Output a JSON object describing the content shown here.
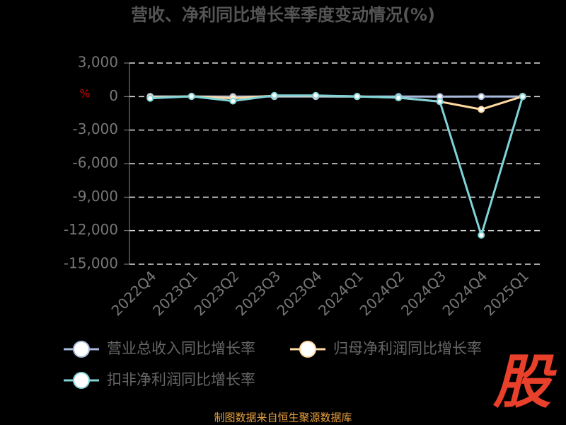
{
  "chart_data": {
    "type": "line",
    "title": "营收、净利同比增长率季度变动情况(%)",
    "y_label": "%",
    "categories": [
      "2022Q4",
      "2023Q1",
      "2023Q2",
      "2023Q3",
      "2023Q4",
      "2024Q1",
      "2024Q2",
      "2024Q3",
      "2024Q4",
      "2025Q1"
    ],
    "series": [
      {
        "name": "营业总收入同比增长率",
        "color": "#a9b9dc",
        "values": [
          10,
          5,
          -2,
          3,
          8,
          1,
          4,
          -6,
          3,
          2
        ]
      },
      {
        "name": "归母净利润同比增长率",
        "color": "#ffd9a3",
        "values": [
          -80,
          30,
          -150,
          80,
          70,
          20,
          -100,
          -450,
          -1150,
          20
        ]
      },
      {
        "name": "扣非净利润同比增长率",
        "color": "#80d4d8",
        "values": [
          -150,
          20,
          -400,
          100,
          100,
          10,
          -100,
          -450,
          -12400,
          0
        ]
      }
    ],
    "ylim": [
      -15000,
      3000
    ],
    "yticks": [
      {
        "value": 3000,
        "label": "3,000"
      },
      0,
      {
        "value": -3000,
        "label": "-3,000"
      },
      {
        "value": -6000,
        "label": "-6,000"
      },
      {
        "value": -9000,
        "label": "-9,000"
      },
      {
        "value": -12000,
        "label": "-12,000"
      },
      {
        "value": -15000,
        "label": "-15,000"
      }
    ],
    "grid": true,
    "source": "制图数据来自恒生聚源数据库",
    "logo": "股"
  }
}
